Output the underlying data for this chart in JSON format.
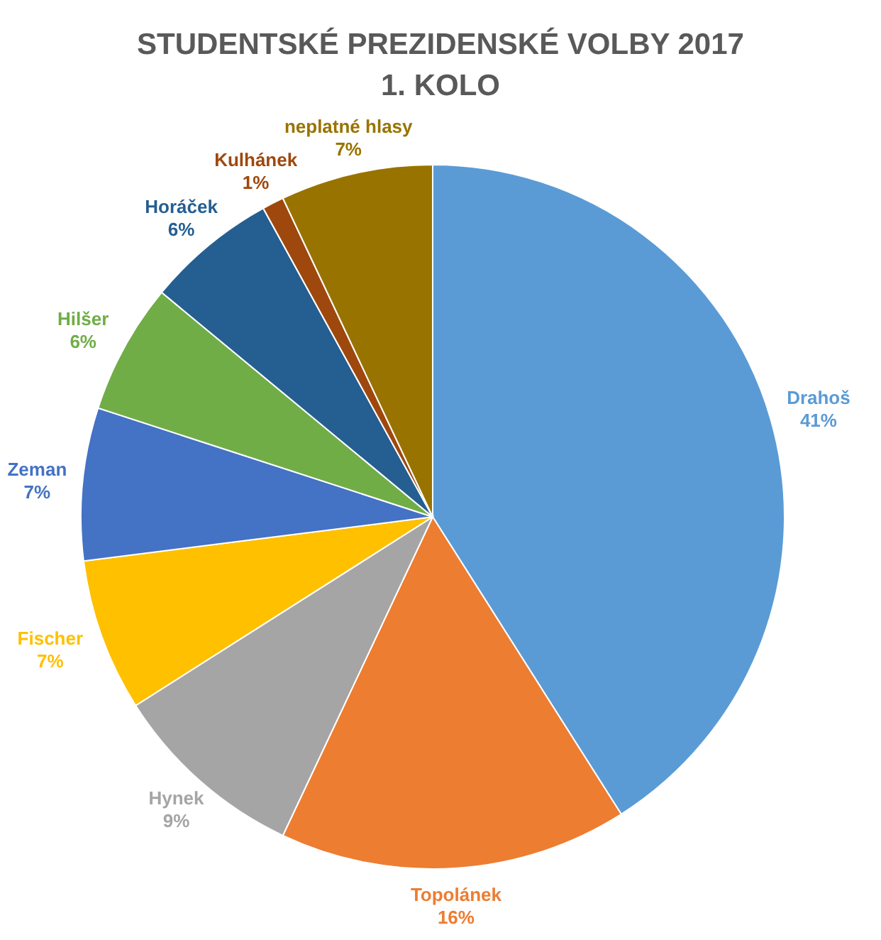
{
  "chart_data": {
    "type": "pie",
    "title": "STUDENTSKÉ PREZIDENSKÉ VOLBY 2017\n1. KOLO",
    "categories": [
      "Drahoš",
      "Topolánek",
      "Hynek",
      "Fischer",
      "Zeman",
      "Hilšer",
      "Horáček",
      "Kulhánek",
      "neplatné hlasy"
    ],
    "values": [
      41,
      16,
      9,
      7,
      7,
      6,
      6,
      1,
      7
    ],
    "value_labels": [
      "41%",
      "16%",
      "9%",
      "7%",
      "7%",
      "6%",
      "6%",
      "1%",
      "7%"
    ],
    "colors": [
      "#5b9bd5",
      "#ed7d31",
      "#a5a5a5",
      "#ffc000",
      "#4472c4",
      "#70ad47",
      "#255e91",
      "#9e480e",
      "#997300"
    ]
  }
}
